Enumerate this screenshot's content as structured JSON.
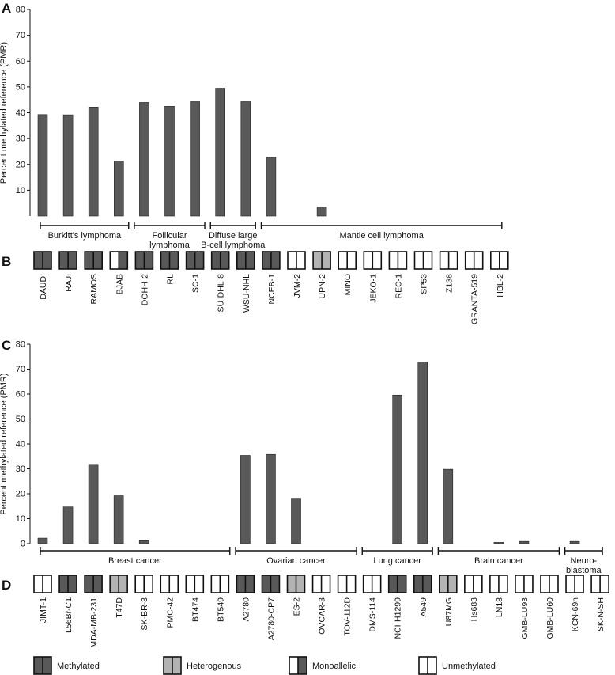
{
  "chart_data": [
    {
      "type": "bar",
      "panel": "A",
      "ylabel": "Percent methylated reference (PMR)",
      "ylim": [
        0,
        80
      ],
      "yticks": [
        10,
        20,
        30,
        40,
        50,
        60,
        70,
        80
      ],
      "categories": [
        "DAUDI",
        "RAJI",
        "RAMOS",
        "BJAB",
        "DOHH-2",
        "RL",
        "SC-1",
        "SU-DHL-8",
        "WSU-NHL",
        "NCEB-1",
        "JVM-2",
        "UPN-2",
        "MINO",
        "JEKO-1",
        "REC-1",
        "SP53",
        "Z138",
        "GRANTA-519",
        "HBL-2"
      ],
      "values": [
        39.3,
        39.2,
        42.2,
        21.3,
        44.0,
        42.5,
        44.3,
        49.5,
        44.3,
        22.7,
        0,
        3.5,
        0,
        0,
        0,
        0,
        0,
        0,
        0
      ],
      "groups": [
        {
          "label": "Burkitt's lymphoma",
          "start": 0,
          "end": 3
        },
        {
          "label": "Follicular lymphoma",
          "start": 4,
          "end": 6
        },
        {
          "label": "Diffuse large B-cell lymphoma",
          "start": 7,
          "end": 8
        },
        {
          "label": "Mantle cell lymphoma",
          "start": 9,
          "end": 18
        }
      ]
    },
    {
      "type": "bar",
      "panel": "C",
      "ylabel": "Percent methylated reference (PMR)",
      "ylim": [
        0,
        80
      ],
      "yticks": [
        0,
        10,
        20,
        30,
        40,
        50,
        60,
        70,
        80
      ],
      "categories": [
        "JIMT-1",
        "L56Br-C1",
        "MDA-MB-231",
        "T47D",
        "SK-BR-3",
        "PMC-42",
        "BT474",
        "BT549",
        "A2780",
        "A2780-CP7",
        "ES-2",
        "OVCAR-3",
        "TOV-112D",
        "DMS-114",
        "NCI-H1299",
        "A549",
        "U87MG",
        "Hs683",
        "LN18",
        "GMB-LU93",
        "GMB-LU60",
        "KCN-69n",
        "SK-N-SH"
      ],
      "values": [
        2.2,
        14.7,
        31.8,
        19.2,
        1.2,
        0,
        0,
        0,
        35.4,
        35.8,
        18.2,
        0,
        0,
        0,
        59.6,
        72.8,
        29.8,
        0,
        0.5,
        0.9,
        0,
        0.9,
        0
      ],
      "groups": [
        {
          "label": "Breast cancer",
          "start": 0,
          "end": 7
        },
        {
          "label": "Ovarian cancer",
          "start": 8,
          "end": 12
        },
        {
          "label": "Lung cancer",
          "start": 13,
          "end": 15
        },
        {
          "label": "Brain cancer",
          "start": 16,
          "end": 20
        },
        {
          "label": "Neuro-blastoma",
          "start": 21,
          "end": 22
        }
      ]
    }
  ],
  "panels": {
    "a": "A",
    "b": "B",
    "c": "C",
    "d": "D"
  },
  "groupLabelLines": {
    "a": [
      [
        "Burkitt's lymphoma"
      ],
      [
        "Follicular",
        "lymphoma"
      ],
      [
        "Diffuse large",
        "B-cell lymphoma"
      ],
      [
        "Mantle cell lymphoma"
      ]
    ],
    "c": [
      [
        "Breast cancer"
      ],
      [
        "Ovarian cancer"
      ],
      [
        "Lung cancer"
      ],
      [
        "Brain cancer"
      ],
      [
        "Neuro-",
        "blastoma"
      ]
    ]
  },
  "status": {
    "b": [
      "M",
      "M",
      "M",
      "O",
      "M",
      "M",
      "M",
      "M",
      "M",
      "M",
      "U",
      "H",
      "U",
      "U",
      "U",
      "U",
      "U",
      "U",
      "U"
    ],
    "d": [
      "U",
      "M",
      "M",
      "H",
      "U",
      "U",
      "U",
      "U",
      "M",
      "M",
      "H",
      "U",
      "U",
      "U",
      "M",
      "M",
      "H",
      "U",
      "U",
      "U",
      "U",
      "U",
      "U"
    ]
  },
  "legend": [
    {
      "code": "M",
      "label": "Methylated"
    },
    {
      "code": "H",
      "label": "Heterogenous"
    },
    {
      "code": "O",
      "label": "Monoallelic"
    },
    {
      "code": "U",
      "label": "Unmethylated"
    }
  ],
  "colors": {
    "bar": "#595959",
    "methylated": "#595959",
    "heterogenous": "#b3b3b3",
    "axis": "#111111"
  }
}
